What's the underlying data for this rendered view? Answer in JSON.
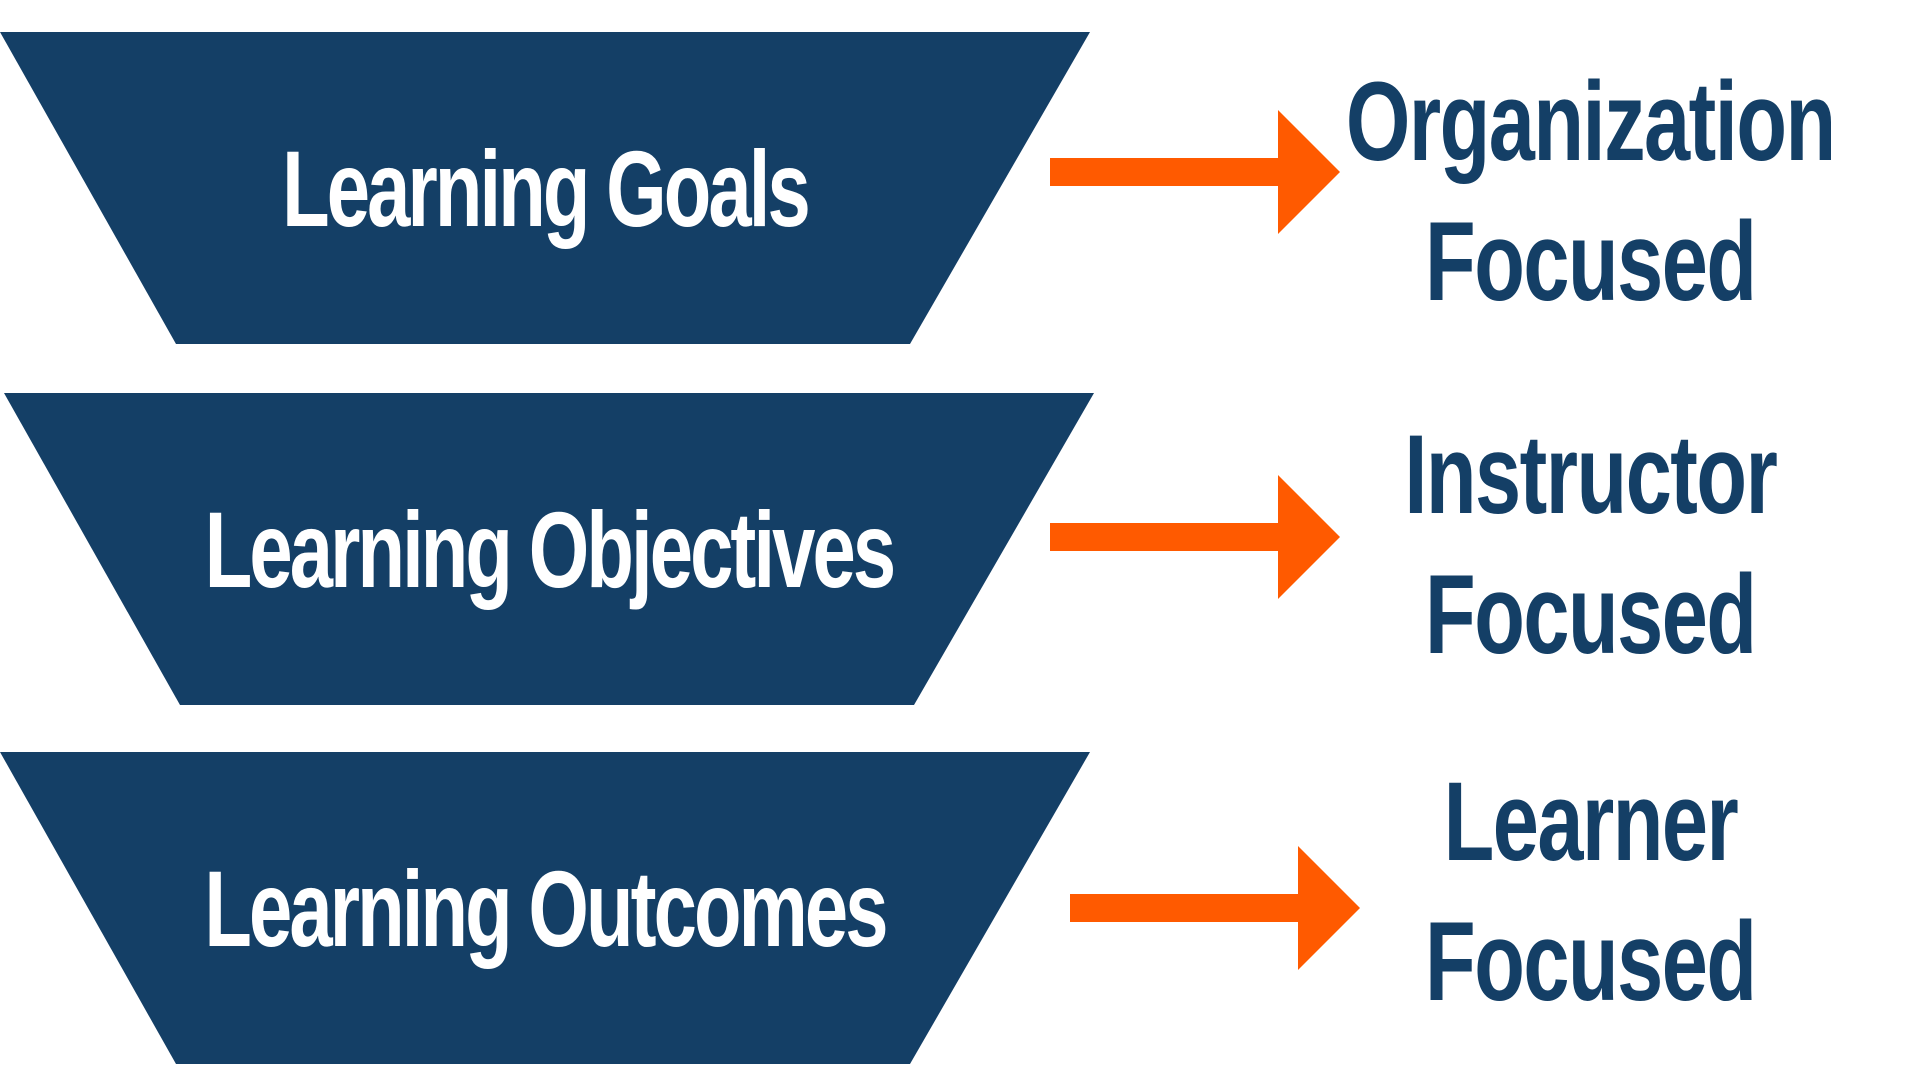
{
  "colors": {
    "trapezoid": "#143f66",
    "trapezoid_text": "#ffffff",
    "arrow": "#ff5a00",
    "focus_text": "#143f66",
    "background": "#ffffff"
  },
  "levels": [
    {
      "label": "Learning Goals",
      "focus_line1": "Organization",
      "focus_line2": "Focused"
    },
    {
      "label": "Learning Objectives",
      "focus_line1": "Instructor",
      "focus_line2": "Focused"
    },
    {
      "label": "Learning Outcomes",
      "focus_line1": "Learner",
      "focus_line2": "Focused"
    }
  ],
  "icons": {
    "arrow": "right-arrow-icon"
  }
}
